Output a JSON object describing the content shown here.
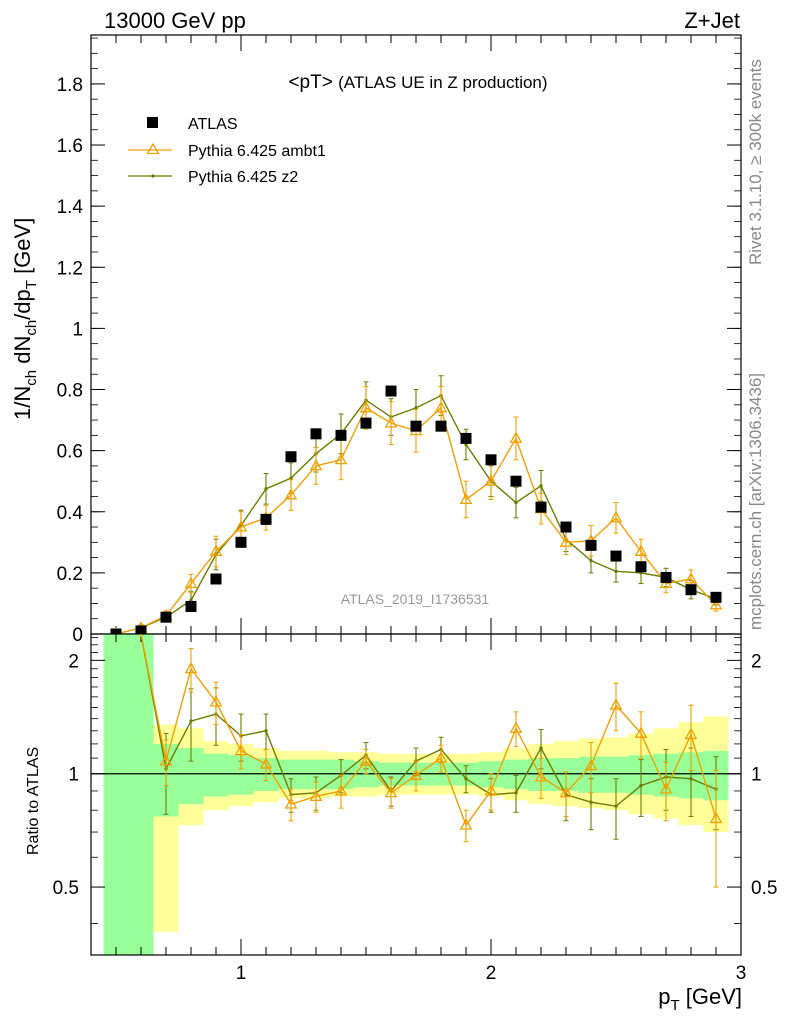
{
  "header": {
    "left": "13000 GeV pp",
    "right": "Z+Jet"
  },
  "side": {
    "rivet": "Rivet 3.1.10, ≥ 300k events",
    "mcplots": "mcplots.cern.ch [arXiv:1306.3436]"
  },
  "chart_data": {
    "type": "scatter",
    "title_main": "<pT>",
    "title_sub": "(ATLAS UE in Z production)",
    "watermark": "ATLAS_2019_I1736531",
    "xlabel_main": "p",
    "xlabel_sub": "T",
    "xlabel_unit": "[GeV]",
    "ylabel": "1/N_ch dN_ch/dp_T [GeV]",
    "ratio_ylabel": "Ratio to ATLAS",
    "xlim": [
      0.4,
      3.0
    ],
    "ylim": [
      0,
      1.96
    ],
    "ratio_ylim": [
      0.33,
      2.35
    ],
    "x_ticks": [
      1,
      2,
      3
    ],
    "y_ticks": [
      0,
      0.2,
      0.4,
      0.6,
      0.8,
      1,
      1.2,
      1.4,
      1.6,
      1.8
    ],
    "y_tick_labels": [
      "0",
      "0.2",
      "0.4",
      "0.6",
      "0.8",
      "1",
      "1.2",
      "1.4",
      "1.6",
      "1.8"
    ],
    "ratio_ticks": [
      0.5,
      1,
      2
    ],
    "ratio_tick_labels": [
      "0.5",
      "1",
      "2"
    ],
    "colors": {
      "data": "#000000",
      "ambt1": "#f0a000",
      "z2": "#6b7d00",
      "band_inner": "#99ff99",
      "band_outer": "#ffff99"
    },
    "legend_position": "top-left",
    "x": [
      0.5,
      0.6,
      0.7,
      0.8,
      0.9,
      1.0,
      1.1,
      1.2,
      1.3,
      1.4,
      1.5,
      1.6,
      1.7,
      1.8,
      1.9,
      2.0,
      2.1,
      2.2,
      2.3,
      2.4,
      2.5,
      2.6,
      2.7,
      2.8,
      2.9
    ],
    "series": [
      {
        "name": "ATLAS",
        "values": [
          0.0,
          0.01,
          0.055,
          0.09,
          0.18,
          0.3,
          0.375,
          0.58,
          0.655,
          0.65,
          0.69,
          0.795,
          0.68,
          0.68,
          0.64,
          0.57,
          0.5,
          0.415,
          0.35,
          0.29,
          0.255,
          0.22,
          0.185,
          0.145,
          0.12
        ]
      },
      {
        "name": "Pythia 6.425 ambt1",
        "values": [
          0.0,
          0.02,
          0.06,
          0.165,
          0.27,
          0.35,
          0.38,
          0.455,
          0.55,
          0.57,
          0.74,
          0.69,
          0.665,
          0.74,
          0.44,
          0.5,
          0.64,
          0.41,
          0.3,
          0.305,
          0.38,
          0.27,
          0.165,
          0.18,
          0.095
        ],
        "errors": [
          0.0,
          0.01,
          0.015,
          0.03,
          0.05,
          0.05,
          0.04,
          0.05,
          0.06,
          0.065,
          0.07,
          0.07,
          0.07,
          0.07,
          0.06,
          0.06,
          0.07,
          0.05,
          0.04,
          0.05,
          0.05,
          0.04,
          0.03,
          0.03,
          0.02
        ],
        "ratio": [
          null,
          2.4,
          1.08,
          1.9,
          1.55,
          1.15,
          1.06,
          0.83,
          0.87,
          0.9,
          1.08,
          0.89,
          0.99,
          1.1,
          0.73,
          0.9,
          1.32,
          0.98,
          0.89,
          1.05,
          1.52,
          1.28,
          0.91,
          1.27,
          0.76
        ],
        "ratio_errors": [
          null,
          0.0,
          0.15,
          0.25,
          0.2,
          0.12,
          0.1,
          0.08,
          0.08,
          0.09,
          0.08,
          0.08,
          0.09,
          0.09,
          0.07,
          0.1,
          0.14,
          0.12,
          0.12,
          0.16,
          0.22,
          0.18,
          0.16,
          0.25,
          0.26
        ]
      },
      {
        "name": "Pythia 6.425 z2",
        "values": [
          0.0,
          0.02,
          0.055,
          0.11,
          0.26,
          0.355,
          0.475,
          0.51,
          0.59,
          0.655,
          0.765,
          0.71,
          0.74,
          0.78,
          0.62,
          0.5,
          0.43,
          0.485,
          0.31,
          0.24,
          0.205,
          0.2,
          0.185,
          0.145,
          0.115
        ],
        "errors": [
          0.0,
          0.01,
          0.015,
          0.03,
          0.05,
          0.05,
          0.05,
          0.05,
          0.06,
          0.065,
          0.06,
          0.06,
          0.06,
          0.065,
          0.05,
          0.05,
          0.05,
          0.05,
          0.04,
          0.04,
          0.035,
          0.035,
          0.03,
          0.03,
          0.02
        ],
        "ratio": [
          null,
          2.4,
          1.03,
          1.38,
          1.44,
          1.26,
          1.3,
          0.88,
          0.89,
          0.99,
          1.12,
          0.9,
          1.08,
          1.16,
          0.97,
          0.88,
          0.89,
          1.17,
          0.88,
          0.84,
          0.82,
          0.93,
          0.98,
          0.97,
          0.91
        ],
        "ratio_errors": [
          null,
          0.0,
          0.25,
          0.3,
          0.25,
          0.18,
          0.14,
          0.09,
          0.09,
          0.1,
          0.09,
          0.08,
          0.09,
          0.09,
          0.08,
          0.09,
          0.1,
          0.14,
          0.13,
          0.13,
          0.15,
          0.16,
          0.18,
          0.2,
          0.2
        ]
      }
    ],
    "bands": {
      "x_edges": [
        0.45,
        0.65,
        0.75,
        0.85,
        0.95,
        1.05,
        1.15,
        1.25,
        1.35,
        1.45,
        1.55,
        1.65,
        1.75,
        1.85,
        1.95,
        2.05,
        2.15,
        2.25,
        2.35,
        2.45,
        2.55,
        2.65,
        2.75,
        2.85,
        2.95
      ],
      "inner_lo": [
        0.33,
        0.77,
        0.83,
        0.87,
        0.88,
        0.9,
        0.91,
        0.91,
        0.91,
        0.92,
        0.93,
        0.93,
        0.93,
        0.93,
        0.92,
        0.91,
        0.9,
        0.9,
        0.89,
        0.89,
        0.88,
        0.87,
        0.86,
        0.85
      ],
      "inner_hi": [
        2.35,
        1.2,
        1.17,
        1.13,
        1.12,
        1.1,
        1.09,
        1.09,
        1.09,
        1.08,
        1.07,
        1.07,
        1.07,
        1.07,
        1.08,
        1.09,
        1.1,
        1.1,
        1.11,
        1.11,
        1.12,
        1.13,
        1.14,
        1.15
      ],
      "outer_lo": [
        0.33,
        0.38,
        0.73,
        0.8,
        0.82,
        0.84,
        0.86,
        0.86,
        0.87,
        0.87,
        0.88,
        0.88,
        0.88,
        0.88,
        0.87,
        0.85,
        0.83,
        0.82,
        0.81,
        0.8,
        0.78,
        0.76,
        0.73,
        0.7
      ],
      "outer_hi": [
        2.35,
        1.35,
        1.32,
        1.22,
        1.2,
        1.17,
        1.15,
        1.15,
        1.14,
        1.14,
        1.13,
        1.13,
        1.13,
        1.13,
        1.14,
        1.17,
        1.2,
        1.22,
        1.24,
        1.25,
        1.28,
        1.32,
        1.37,
        1.42
      ]
    }
  }
}
